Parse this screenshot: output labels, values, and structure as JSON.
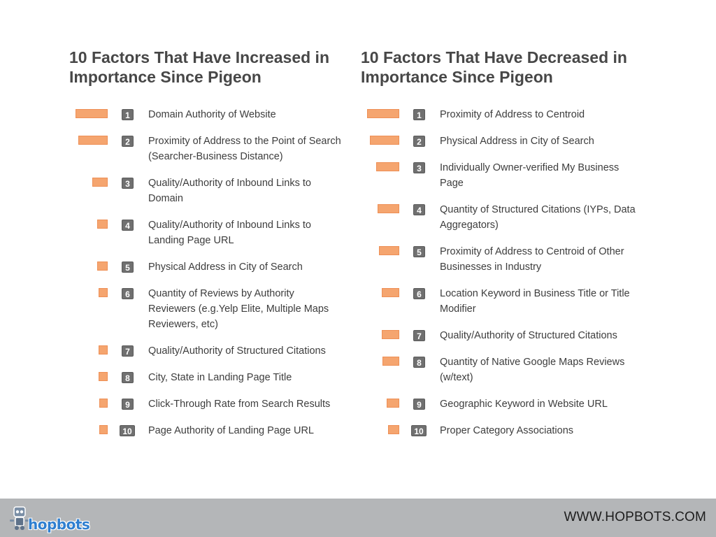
{
  "chart_data": [
    {
      "type": "bar",
      "title": "10 Factors That Have Increased in Importance Since Pigeon",
      "categories": [
        "Domain Authority of Website",
        "Proximity of Address to the Point of Search (Searcher-Business Distance)",
        "Quality/Authority of Inbound Links to Domain",
        "Quality/Authority of Inbound Links to Landing Page URL",
        "Physical Address in City of Search",
        "Quantity of Reviews by Authority Reviewers (e.g.Yelp Elite, Multiple Maps Reviewers, etc)",
        "Quality/Authority of Structured Citations",
        "City, State in Landing Page Title",
        "Click-Through Rate from Search Results",
        "Page Authority of Landing Page URL"
      ],
      "ranks": [
        "1",
        "2",
        "3",
        "4",
        "5",
        "6",
        "7",
        "8",
        "9",
        "10"
      ],
      "values": [
        46,
        42,
        22,
        15,
        15,
        13,
        13,
        13,
        12,
        12
      ],
      "orientation": "horizontal",
      "bar_direction": "right-to-left",
      "xlabel": "",
      "ylabel": ""
    },
    {
      "type": "bar",
      "title": "10 Factors That Have Decreased in Importance Since Pigeon",
      "categories": [
        "Proximity of Address to Centroid",
        "Physical Address in City of Search",
        "Individually Owner-verified My Business Page",
        "Quantity of Structured Citations (IYPs, Data Aggregators)",
        "Proximity of Address to Centroid of Other Businesses in Industry",
        "Location Keyword in Business Title or Title Modifier",
        "Quality/Authority of Structured Citations",
        "Quantity of Native Google Maps Reviews (w/text)",
        "Geographic Keyword in Website URL",
        "Proper Category Associations"
      ],
      "ranks": [
        "1",
        "2",
        "3",
        "4",
        "5",
        "6",
        "7",
        "8",
        "9",
        "10"
      ],
      "values": [
        46,
        42,
        33,
        31,
        29,
        25,
        25,
        24,
        18,
        16
      ],
      "orientation": "horizontal",
      "bar_direction": "right-to-left",
      "xlabel": "",
      "ylabel": ""
    }
  ],
  "footer": {
    "logo_text": "hopbots",
    "site_url": "WWW.HOPBOTS.COM"
  },
  "colors": {
    "bar": "#f5a56f",
    "badge": "#707070",
    "footer_bg": "#b4b6b8",
    "logo_blue": "#2f7fd0"
  },
  "icons": {
    "logo": "robot-mascot-icon"
  }
}
